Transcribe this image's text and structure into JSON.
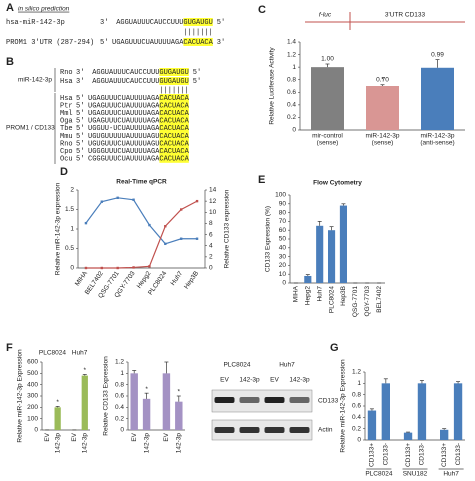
{
  "panel_labels": [
    "A",
    "B",
    "C",
    "D",
    "E",
    "F",
    "G"
  ],
  "sequences_a": {
    "title": "in silico prediction",
    "rows": [
      {
        "name": "hsa-miR-142-3p",
        "prefix": "3'",
        "plain": "AGGUAUUUCAUCCUUU",
        "highlight": "GUGAUGU",
        "suffix": "5'"
      },
      {
        "name": "PROM1 3'UTR (287-294)",
        "prefix": "5'",
        "plain": "UGAGUUUCUAUUUUAGA",
        "highlight": "CACUACA",
        "suffix": "3'"
      }
    ],
    "pairing": "|||||||"
  },
  "alignment_b": {
    "mir_label": "miR-142-3p",
    "target_label": "PROM1 / CD133",
    "mir_rows": [
      {
        "species": "Rno",
        "prefix": "3'",
        "plain": "AGGUAUUUCAUCCUUU",
        "highlight": "GUGAUGU",
        "suffix": "5'"
      },
      {
        "species": "Hsa",
        "prefix": "3'",
        "plain": "AGGUAUUUCAUCCUUU",
        "highlight": "GUGAUGU",
        "suffix": "5'"
      }
    ],
    "pairing": "|||||||",
    "target_rows": [
      {
        "species": "Hsa",
        "prefix": "5'",
        "plain": "UGAGUUUCUAUUUUAGA",
        "highlight": "CACUACA"
      },
      {
        "species": "Ptr",
        "prefix": "5'",
        "plain": "UGAGUUUCUAUUUUAGA",
        "highlight": "CACUACA"
      },
      {
        "species": "Mml",
        "prefix": "5'",
        "plain": "UGAGUUUCUAUUUUAGA",
        "highlight": "CACUACA"
      },
      {
        "species": "Oga",
        "prefix": "5'",
        "plain": "UGAGUUUCUAUUUUAGA",
        "highlight": "CACUACA"
      },
      {
        "species": "Tbe",
        "prefix": "5'",
        "plain": "UGGUU-UCUAUUUUAGA",
        "highlight": "CACUACA"
      },
      {
        "species": "Mmu",
        "prefix": "5'",
        "plain": "UGUGUUUUUAUUUUAGU",
        "highlight": "CACUACA"
      },
      {
        "species": "Rno",
        "prefix": "5'",
        "plain": "UGUGUUUCUAUUUUAGU",
        "highlight": "CACUACA"
      },
      {
        "species": "Cpo",
        "prefix": "5'",
        "plain": "UGGGUUUCUAUUUUAGA",
        "highlight": "CACUACA"
      },
      {
        "species": "Ocu",
        "prefix": "5'",
        "plain": "CGGGUUUCUAUUUUAGA",
        "highlight": "CACUACA"
      }
    ]
  },
  "chart_data": [
    {
      "type": "bar",
      "header_left": "f-luc",
      "header_right": "3'UTR CD133",
      "ylabel": "Relative Luciferase Activity",
      "categories": [
        "mir-control",
        "miR-142-3p",
        "miR-142-3p"
      ],
      "category_notes": [
        "(sense)",
        "(sense)",
        "(anti-sense)"
      ],
      "values": [
        1.0,
        0.7,
        0.99
      ],
      "value_labels": [
        "1.00",
        "0.70",
        "0.99"
      ],
      "errors": [
        0.05,
        0.02,
        0.13
      ],
      "colors": [
        "#808080",
        "#d99694",
        "#4a7ebb"
      ],
      "stars": [
        {
          "index": 1,
          "label": "*"
        }
      ],
      "ylim": [
        0,
        1.4
      ],
      "yticks": [
        0,
        0.2,
        0.4,
        0.6,
        0.8,
        1,
        1.2,
        1.4
      ]
    },
    {
      "type": "line",
      "title": "Real-Time qPCR",
      "ylabel": "Relative miR-142-3p expression",
      "y2label": "Relative CD133 expression",
      "categories": [
        "MIHA",
        "BEL7402",
        "QSG-7701",
        "QGY-7703",
        "Hepg2",
        "PLC8024",
        "Huh7",
        "Hep3B"
      ],
      "series": [
        {
          "color": "#4a7ebb",
          "values": [
            1.15,
            1.7,
            1.8,
            1.75,
            1.1,
            0.62,
            0.75,
            0.75
          ]
        },
        {
          "color": "#c0504d",
          "axis": "y2",
          "values": [
            0,
            0,
            0,
            0.1,
            0.3,
            7.5,
            10.5,
            12
          ]
        }
      ],
      "ylim": [
        0,
        2
      ],
      "yticks": [
        0,
        0.5,
        1,
        1.5,
        2
      ],
      "y2lim": [
        0,
        14
      ],
      "y2ticks": [
        0,
        2,
        4,
        6,
        8,
        10,
        12,
        14
      ]
    },
    {
      "type": "bar",
      "title": "Flow Cytometry",
      "ylabel": "CD133 Expression (%)",
      "categories": [
        "MIHA",
        "Hepg2",
        "Huh7",
        "PLC8024",
        "Hep3B",
        "QSG-7701",
        "QGY-7703",
        "BEL7402"
      ],
      "values": [
        0,
        8,
        65,
        60,
        88,
        0,
        0,
        0
      ],
      "errors": [
        0,
        1.5,
        5,
        4,
        2,
        0,
        0,
        0
      ],
      "color": "#4a7ebb",
      "ylim": [
        0,
        100
      ],
      "yticks": [
        0,
        10,
        20,
        30,
        40,
        50,
        60,
        70,
        80,
        90,
        100
      ]
    },
    {
      "type": "bar",
      "ylabel": "Relative miR-142-3p Expression",
      "color": "#9bbb59",
      "groups": [
        {
          "label": "PLC8024",
          "categories": [
            "EV",
            "142-3p"
          ],
          "values": [
            1,
            200
          ],
          "errors": [
            0,
            8
          ],
          "stars": [
            {
              "index": 1,
              "label": "*"
            }
          ]
        },
        {
          "label": "Huh7",
          "categories": [
            "EV",
            "142-3p"
          ],
          "values": [
            1,
            480
          ],
          "errors": [
            0,
            10
          ],
          "stars": [
            {
              "index": 1,
              "label": "*"
            }
          ]
        }
      ],
      "ylim": [
        0,
        600
      ],
      "yticks": [
        0,
        100,
        200,
        300,
        400,
        500,
        600
      ]
    },
    {
      "type": "bar",
      "ylabel": "Relative CD133 Expression",
      "color": "#a492c4",
      "groups": [
        {
          "categories": [
            "EV",
            "142-3p"
          ],
          "values": [
            1,
            0.55
          ],
          "errors": [
            0.05,
            0.1
          ],
          "stars": [
            {
              "index": 1,
              "label": "*"
            }
          ]
        },
        {
          "categories": [
            "EV",
            "142-3p"
          ],
          "values": [
            1,
            0.5
          ],
          "errors": [
            0.2,
            0.1
          ],
          "stars": [
            {
              "index": 1,
              "label": "*"
            }
          ]
        }
      ],
      "ylim": [
        0,
        1.2
      ],
      "yticks": [
        0,
        0.2,
        0.4,
        0.6,
        0.8,
        1,
        1.2
      ]
    },
    {
      "type": "bar",
      "ylabel": "Relative miR-142-3p Expression",
      "color": "#4a7ebb",
      "groups": [
        {
          "label": "PLC8024",
          "categories": [
            "CD133+",
            "CD133-"
          ],
          "values": [
            0.52,
            1.0
          ],
          "errors": [
            0.03,
            0.08
          ]
        },
        {
          "label": "SNU182",
          "categories": [
            "CD133+",
            "CD133-"
          ],
          "values": [
            0.13,
            1.0
          ],
          "errors": [
            0.01,
            0.05
          ]
        },
        {
          "label": "Huh7",
          "categories": [
            "CD133+",
            "CD133-"
          ],
          "values": [
            0.18,
            1.0
          ],
          "errors": [
            0.02,
            0.03
          ]
        }
      ],
      "ylim": [
        0,
        1.2
      ],
      "yticks": [
        0,
        0.2,
        0.4,
        0.6,
        0.8,
        1,
        1.2
      ]
    }
  ],
  "blot": {
    "groups": [
      "PLC8024",
      "Huh7"
    ],
    "lanes": [
      "EV",
      "142-3p",
      "EV",
      "142-3p"
    ],
    "bands": [
      "CD133",
      "Actin"
    ]
  }
}
